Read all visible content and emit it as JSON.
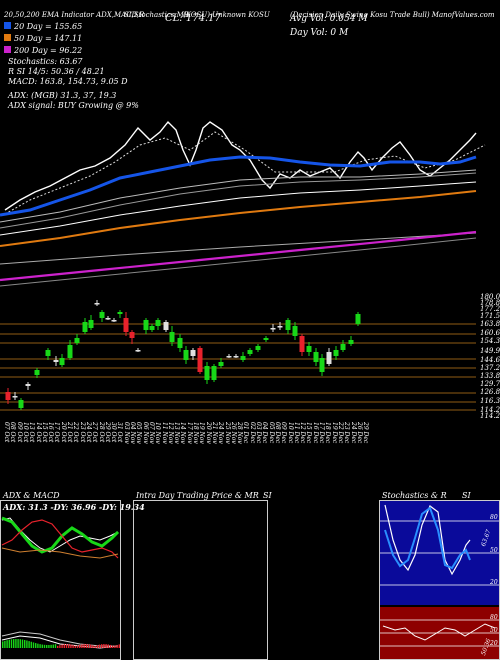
{
  "header": {
    "col1": "20,50,200 EMA Indicator ADX,MACD,R",
    "col2": "SI,Stochastics,MR",
    "col3": "(KOSU) Unknown KOSU",
    "col4": "(Decision Daily Swing Kosu Trade Bull) ManofValues.com",
    "close": "CL: 174.17",
    "avg_vol": "Avg Vol: 0.054  M",
    "day_vol": "Day Vol: 0  M"
  },
  "legend": {
    "ema20": "20  Day = 155.65",
    "ema50": "50  Day = 147.11",
    "ema200": "200  Day = 96.22",
    "stoch": "Stochastics: 63.67",
    "rsi": "R                SI 14/5: 50.36  / 48.21",
    "macd": "MACD: 163.8,  154.73,  9.05 D",
    "adx": "ADX:                              (MGB) 31.3,   37,  19.3",
    "adx_signal": "ADX  signal:                                    BUY Growing @ 9%"
  },
  "colors": {
    "ema20": "#1555e8",
    "ema50": "#e07a10",
    "ema200": "#cc22cc",
    "up": "#18d818",
    "down": "#e8222c",
    "level": "#c07a1a"
  },
  "price_axis": [
    "180.08",
    "178.88",
    "177.24",
    "171.53",
    "163.81",
    "160.69",
    "154.37",
    "149.96",
    "144.6",
    "137.22",
    "133.8",
    "129.79",
    "126.87",
    "116.33",
    "114.25",
    "114.21"
  ],
  "dates": [
    "07 Oct",
    "08 Oct",
    "09 Oct",
    "10 Oct",
    "13 Oct",
    "14 Oct",
    "15 Oct",
    "16 Oct",
    "17 Oct",
    "20 Oct",
    "21 Oct",
    "22 Oct",
    "23 Oct",
    "24 Oct",
    "27 Oct",
    "28 Oct",
    "29 Oct",
    "30 Oct",
    "31 Oct",
    "03 Nov",
    "04 Nov",
    "05 Nov",
    "06 Nov",
    "07 Nov",
    "10 Nov",
    "11 Nov",
    "12 Nov",
    "13 Nov",
    "14 Nov",
    "17 Nov",
    "18 Nov",
    "19 Nov",
    "20 Nov",
    "21 Nov",
    "24 Nov",
    "25 Nov",
    "26 Nov",
    "28 Nov",
    "01 Dec",
    "02 Dec",
    "03 Dec",
    "04 Dec",
    "05 Dec",
    "08 Dec",
    "09 Dec",
    "10 Dec",
    "11 Dec",
    "12 Dec",
    "15 Dec",
    "16 Dec",
    "17 Dec",
    "18 Dec",
    "19 Dec",
    "22 Dec",
    "23 Dec",
    "24 Dec",
    "26 Dec",
    "29 Dec"
  ],
  "panels": {
    "adx_title": "ADX  & MACD",
    "adx_values": "ADX: 31.3  -DY: 36.96  -DY: 19.34",
    "intraday_title": "Intra  Day Trading Price  & MR",
    "intraday_si": "SI",
    "stoch_title": "Stochastics & R",
    "stoch_si": "SI",
    "stoch_levels": [
      "80",
      "50",
      "20"
    ],
    "stoch_current": "63.67",
    "rsi_levels": [
      "80",
      "50",
      "20"
    ],
    "rsi_current": "50.36"
  }
}
